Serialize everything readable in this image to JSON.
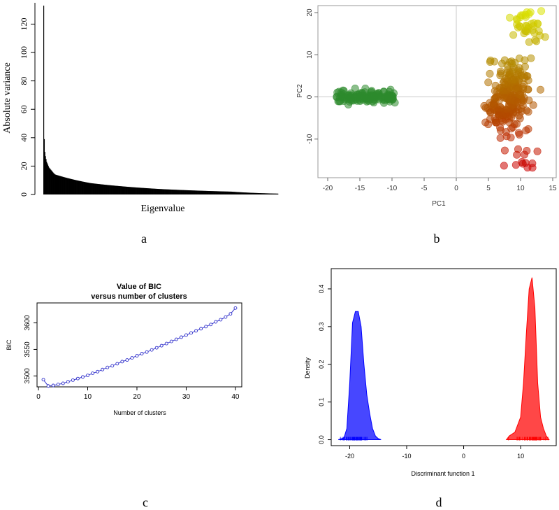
{
  "chart_data": [
    {
      "panel_label": "a",
      "type": "bar",
      "title": "",
      "xlabel": "Eigenvalue",
      "ylabel": "Absolute variance",
      "ylim": [
        0,
        135
      ],
      "yticks": [
        0,
        20,
        40,
        60,
        80,
        100,
        120
      ],
      "bar_count": 400,
      "leading_values": [
        133,
        39,
        30,
        27,
        25,
        23,
        22,
        21,
        20,
        19,
        18.5,
        18,
        17.5,
        17,
        16.5,
        16,
        15.5,
        15,
        14.6,
        14.2
      ],
      "tail_decay": {
        "at_index_20": 14,
        "at_index_80": 8,
        "at_index_200": 3.8,
        "at_index_320": 2,
        "at_index_399": 0.6
      }
    },
    {
      "panel_label": "b",
      "type": "scatter",
      "title": "",
      "xlabel": "PC1",
      "ylabel": "PC2",
      "xlim": [
        -20,
        15
      ],
      "ylim": [
        -18,
        22
      ],
      "xticks": [
        -20,
        -15,
        -10,
        -5,
        0,
        5,
        10,
        15
      ],
      "yticks": [
        -10,
        0,
        10,
        20
      ],
      "reference_lines": {
        "x": 0,
        "y": 0
      },
      "clusters": [
        {
          "color": "#2e8b2e",
          "x_range": [
            -18.6,
            -9.5
          ],
          "y_range": [
            -2,
            2
          ]
        },
        {
          "color": "#c8a800",
          "x_range": [
            4,
            14
          ],
          "y_range": [
            -17,
            21
          ]
        }
      ],
      "color_gradient": [
        "#dde800",
        "#b38a00",
        "#b34a00",
        "#cc0000"
      ]
    },
    {
      "panel_label": "c",
      "type": "line",
      "title": "Value of BIC\nversus number of clusters",
      "title_line1": "Value of BIC",
      "title_line2": "versus number of clusters",
      "xlabel": "Number of clusters",
      "ylabel": "BIC",
      "xlim": [
        0,
        41
      ],
      "ylim": [
        3482,
        3635
      ],
      "xticks": [
        0,
        10,
        20,
        30,
        40
      ],
      "yticks": [
        3500,
        3550,
        3600
      ],
      "line_color": "#3333cc",
      "x": [
        1,
        2,
        3,
        4,
        5,
        6,
        7,
        8,
        9,
        10,
        11,
        12,
        13,
        14,
        15,
        16,
        17,
        18,
        19,
        20,
        21,
        22,
        23,
        24,
        25,
        26,
        27,
        28,
        29,
        30,
        31,
        32,
        33,
        34,
        35,
        36,
        37,
        38,
        39,
        40
      ],
      "y": [
        3493,
        3481,
        3482,
        3484,
        3486,
        3489,
        3492,
        3495,
        3498,
        3501,
        3505,
        3508,
        3512,
        3516,
        3519,
        3523,
        3527,
        3530,
        3534,
        3538,
        3542,
        3545,
        3549,
        3553,
        3557,
        3561,
        3565,
        3569,
        3573,
        3577,
        3581,
        3585,
        3589,
        3593,
        3597,
        3602,
        3606,
        3611,
        3617,
        3628
      ]
    },
    {
      "panel_label": "d",
      "type": "area",
      "title": "",
      "xlabel": "Discriminant function 1",
      "ylabel": "Density",
      "xlim": [
        -23,
        16
      ],
      "ylim": [
        -0.012,
        0.45
      ],
      "xticks": [
        -20,
        -10,
        0,
        10
      ],
      "yticks": [
        0.0,
        0.1,
        0.2,
        0.3,
        0.4
      ],
      "series": [
        {
          "color": "#0000ff",
          "x": [
            -22,
            -21,
            -20.5,
            -20,
            -19.5,
            -19,
            -18.5,
            -18,
            -17.5,
            -17,
            -16.5,
            -16,
            -15.5,
            -15,
            -14.5
          ],
          "y": [
            0,
            0.005,
            0.03,
            0.15,
            0.31,
            0.34,
            0.34,
            0.3,
            0.2,
            0.12,
            0.07,
            0.03,
            0.01,
            0.003,
            0
          ]
        },
        {
          "color": "#ff0000",
          "x": [
            7.5,
            8,
            9,
            10,
            10.5,
            11,
            11.5,
            12,
            12.5,
            13,
            13.5,
            14,
            14.5,
            15
          ],
          "y": [
            0,
            0.01,
            0.02,
            0.06,
            0.15,
            0.28,
            0.4,
            0.43,
            0.35,
            0.15,
            0.06,
            0.03,
            0.01,
            0
          ]
        }
      ]
    }
  ]
}
